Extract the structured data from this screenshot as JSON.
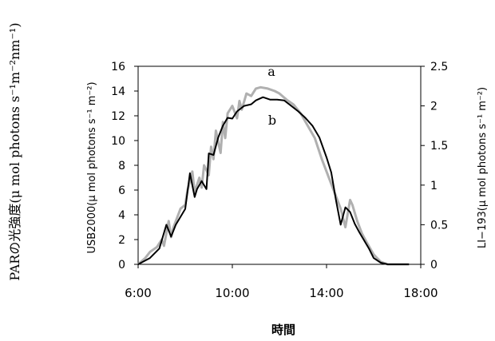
{
  "chart_data": {
    "type": "line",
    "outer_label": "PARの光強度(μ mol photons s⁻¹m⁻²nm⁻¹)",
    "xlabel": "時間",
    "ylabel_left": "USB2000(μ mol photons s⁻¹ m⁻²)",
    "ylabel_right": "LI−193(μ mol photons s⁻¹ m⁻²)",
    "x_ticks": [
      "6:00",
      "10:00",
      "14:00",
      "18:00"
    ],
    "x_range_hours": [
      6,
      18
    ],
    "ylim_left": [
      0,
      16
    ],
    "ylim_right": [
      0,
      2.5
    ],
    "y_ticks_left": [
      "0",
      "2",
      "4",
      "6",
      "8",
      "10",
      "12",
      "14",
      "16"
    ],
    "y_ticks_right": [
      "0",
      "0.5",
      "1",
      "1.5",
      "2",
      "2.5"
    ],
    "annotations": [
      "a",
      "b"
    ],
    "series": [
      {
        "label": "a",
        "axis": "left",
        "color": "#b0b0b0",
        "x": [
          6.0,
          6.3,
          6.5,
          6.8,
          7.0,
          7.1,
          7.3,
          7.4,
          7.5,
          7.7,
          7.8,
          8.0,
          8.1,
          8.3,
          8.4,
          8.6,
          8.7,
          8.8,
          9.0,
          9.1,
          9.2,
          9.3,
          9.5,
          9.6,
          9.7,
          9.8,
          10.0,
          10.2,
          10.3,
          10.4,
          10.6,
          10.8,
          11.0,
          11.2,
          11.5,
          11.8,
          12.0,
          12.3,
          12.6,
          12.9,
          13.2,
          13.5,
          13.8,
          14.0,
          14.2,
          14.4,
          14.6,
          14.8,
          15.0,
          15.1,
          15.3,
          15.5,
          15.7,
          16.0,
          16.3,
          16.6,
          16.9,
          17.2,
          17.5
        ],
        "values": [
          0.0,
          0.5,
          1.0,
          1.4,
          2.0,
          1.5,
          3.5,
          2.2,
          3.0,
          4.0,
          4.5,
          4.8,
          6.0,
          7.5,
          5.8,
          7.0,
          6.2,
          8.0,
          7.2,
          9.5,
          8.5,
          10.8,
          9.0,
          11.5,
          10.2,
          12.2,
          12.8,
          11.8,
          13.2,
          12.5,
          13.8,
          13.6,
          14.2,
          14.3,
          14.2,
          14.0,
          13.8,
          13.3,
          12.9,
          12.2,
          11.2,
          10.2,
          8.5,
          7.5,
          6.5,
          5.5,
          4.5,
          3.0,
          5.2,
          4.8,
          3.5,
          2.5,
          1.8,
          0.8,
          0.2,
          0.0,
          0.0,
          0.0,
          0.0
        ]
      },
      {
        "label": "b",
        "axis": "right",
        "color": "#000000",
        "x": [
          6.0,
          6.5,
          6.9,
          7.2,
          7.4,
          7.6,
          7.8,
          8.0,
          8.2,
          8.4,
          8.5,
          8.7,
          8.9,
          9.0,
          9.2,
          9.4,
          9.6,
          9.8,
          10.0,
          10.2,
          10.5,
          10.8,
          11.0,
          11.3,
          11.6,
          11.9,
          12.2,
          12.5,
          12.8,
          13.1,
          13.4,
          13.7,
          14.0,
          14.2,
          14.4,
          14.6,
          14.8,
          15.0,
          15.2,
          15.4,
          15.6,
          15.8,
          16.0,
          16.3,
          16.6,
          16.9,
          17.2,
          17.5
        ],
        "values": [
          0.0,
          0.08,
          0.2,
          0.5,
          0.35,
          0.5,
          0.6,
          0.7,
          1.15,
          0.85,
          0.95,
          1.05,
          0.95,
          1.4,
          1.38,
          1.6,
          1.75,
          1.85,
          1.84,
          1.93,
          2.0,
          2.02,
          2.07,
          2.11,
          2.08,
          2.08,
          2.07,
          2.0,
          1.93,
          1.85,
          1.75,
          1.6,
          1.35,
          1.16,
          0.81,
          0.5,
          0.72,
          0.66,
          0.51,
          0.4,
          0.3,
          0.2,
          0.08,
          0.02,
          0.0,
          0.0,
          0.0,
          0.0
        ]
      }
    ]
  }
}
